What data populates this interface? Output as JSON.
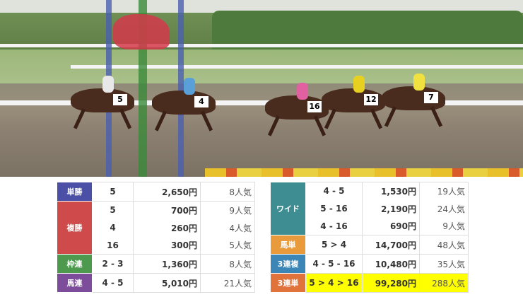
{
  "colors": {
    "tansho": "#4b50a6",
    "fukusho": "#cf4b4b",
    "wakuren": "#4d9a4f",
    "umaren": "#7d4c9b",
    "wide": "#3e8d93",
    "umatan": "#e99b3b",
    "sanrenpuku": "#3b86b6",
    "sanrentan": "#e0723c",
    "highlight": "#ffff00"
  },
  "photo": {
    "saddle_numbers": [
      "5",
      "4",
      "16",
      "12",
      "7"
    ]
  },
  "left_table": [
    {
      "label": "単勝",
      "color_key": "tansho",
      "rows": [
        {
          "combo": "5",
          "payout": "2,650円",
          "popularity": "8人気"
        }
      ]
    },
    {
      "label": "複勝",
      "color_key": "fukusho",
      "rows": [
        {
          "combo": "5",
          "payout": "700円",
          "popularity": "9人気"
        },
        {
          "combo": "4",
          "payout": "260円",
          "popularity": "4人気"
        },
        {
          "combo": "16",
          "payout": "300円",
          "popularity": "5人気"
        }
      ]
    },
    {
      "label": "枠連",
      "color_key": "wakuren",
      "rows": [
        {
          "combo": "2 - 3",
          "payout": "1,360円",
          "popularity": "8人気"
        }
      ]
    },
    {
      "label": "馬連",
      "color_key": "umaren",
      "rows": [
        {
          "combo": "4 - 5",
          "payout": "5,010円",
          "popularity": "21人気"
        }
      ]
    }
  ],
  "right_table": [
    {
      "label": "ワイド",
      "color_key": "wide",
      "rows": [
        {
          "combo": "4 - 5",
          "payout": "1,530円",
          "popularity": "19人気"
        },
        {
          "combo": "5 - 16",
          "payout": "2,190円",
          "popularity": "24人気"
        },
        {
          "combo": "4 - 16",
          "payout": "690円",
          "popularity": "9人気"
        }
      ]
    },
    {
      "label": "馬単",
      "color_key": "umatan",
      "rows": [
        {
          "combo": "5 > 4",
          "payout": "14,700円",
          "popularity": "48人気"
        }
      ]
    },
    {
      "label": "3連複",
      "color_key": "sanrenpuku",
      "rows": [
        {
          "combo": "4 - 5 - 16",
          "payout": "10,480円",
          "popularity": "35人気"
        }
      ]
    },
    {
      "label": "3連単",
      "color_key": "sanrentan",
      "highlight": true,
      "rows": [
        {
          "combo": "5 > 4 > 16",
          "payout": "99,280円",
          "popularity": "288人気"
        }
      ]
    }
  ]
}
